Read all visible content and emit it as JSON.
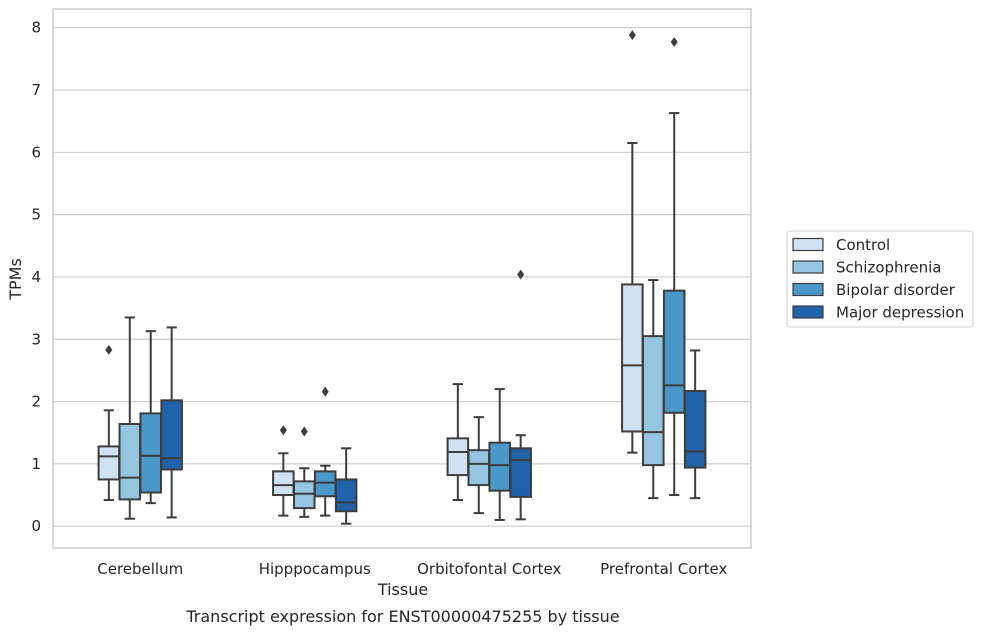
{
  "caption": "Transcript expression for ENST00000475255 by tissue",
  "chart_data": {
    "type": "box",
    "xlabel": "Tissue",
    "ylabel": "TPMs",
    "ylim": [
      -0.35,
      8.3
    ],
    "yticks": [
      0,
      1,
      2,
      3,
      4,
      5,
      6,
      7,
      8
    ],
    "grid": "horizontal",
    "legend_position": "right",
    "categories": [
      "Cerebellum",
      "Hipppocampus",
      "Orbitofontal Cortex",
      "Prefrontal Cortex"
    ],
    "series": [
      {
        "name": "Control",
        "color": "#d0e1f2",
        "boxes": [
          {
            "whislo": 0.42,
            "q1": 0.75,
            "med": 1.12,
            "q3": 1.28,
            "whishi": 1.86,
            "fliers": [
              2.83
            ]
          },
          {
            "whislo": 0.17,
            "q1": 0.5,
            "med": 0.66,
            "q3": 0.88,
            "whishi": 1.17,
            "fliers": [
              1.54
            ]
          },
          {
            "whislo": 0.42,
            "q1": 0.82,
            "med": 1.19,
            "q3": 1.41,
            "whishi": 2.28,
            "fliers": []
          },
          {
            "whislo": 1.18,
            "q1": 1.52,
            "med": 2.58,
            "q3": 3.88,
            "whishi": 6.15,
            "fliers": [
              7.88
            ]
          }
        ]
      },
      {
        "name": "Schizophrenia",
        "color": "#94c4df",
        "boxes": [
          {
            "whislo": 0.12,
            "q1": 0.43,
            "med": 0.78,
            "q3": 1.64,
            "whishi": 3.35,
            "fliers": []
          },
          {
            "whislo": 0.15,
            "q1": 0.29,
            "med": 0.52,
            "q3": 0.72,
            "whishi": 0.93,
            "fliers": [
              1.52
            ]
          },
          {
            "whislo": 0.21,
            "q1": 0.66,
            "med": 1.0,
            "q3": 1.22,
            "whishi": 1.75,
            "fliers": []
          },
          {
            "whislo": 0.45,
            "q1": 0.98,
            "med": 1.51,
            "q3": 3.05,
            "whishi": 3.95,
            "fliers": []
          }
        ]
      },
      {
        "name": "Bipolar disorder",
        "color": "#4a98c9",
        "boxes": [
          {
            "whislo": 0.37,
            "q1": 0.54,
            "med": 1.13,
            "q3": 1.81,
            "whishi": 3.13,
            "fliers": []
          },
          {
            "whislo": 0.17,
            "q1": 0.48,
            "med": 0.7,
            "q3": 0.88,
            "whishi": 0.97,
            "fliers": [
              2.16
            ]
          },
          {
            "whislo": 0.1,
            "q1": 0.57,
            "med": 0.98,
            "q3": 1.34,
            "whishi": 2.2,
            "fliers": []
          },
          {
            "whislo": 0.5,
            "q1": 1.82,
            "med": 2.26,
            "q3": 3.78,
            "whishi": 6.63,
            "fliers": [
              7.77
            ]
          }
        ]
      },
      {
        "name": "Major depression",
        "color": "#2163aa",
        "boxes": [
          {
            "whislo": 0.14,
            "q1": 0.91,
            "med": 1.09,
            "q3": 2.02,
            "whishi": 3.19,
            "fliers": []
          },
          {
            "whislo": 0.04,
            "q1": 0.24,
            "med": 0.38,
            "q3": 0.75,
            "whishi": 1.25,
            "fliers": []
          },
          {
            "whislo": 0.11,
            "q1": 0.47,
            "med": 1.06,
            "q3": 1.25,
            "whishi": 1.46,
            "fliers": [
              4.04
            ]
          },
          {
            "whislo": 0.45,
            "q1": 0.94,
            "med": 1.2,
            "q3": 2.17,
            "whishi": 2.82,
            "fliers": []
          }
        ]
      }
    ]
  }
}
